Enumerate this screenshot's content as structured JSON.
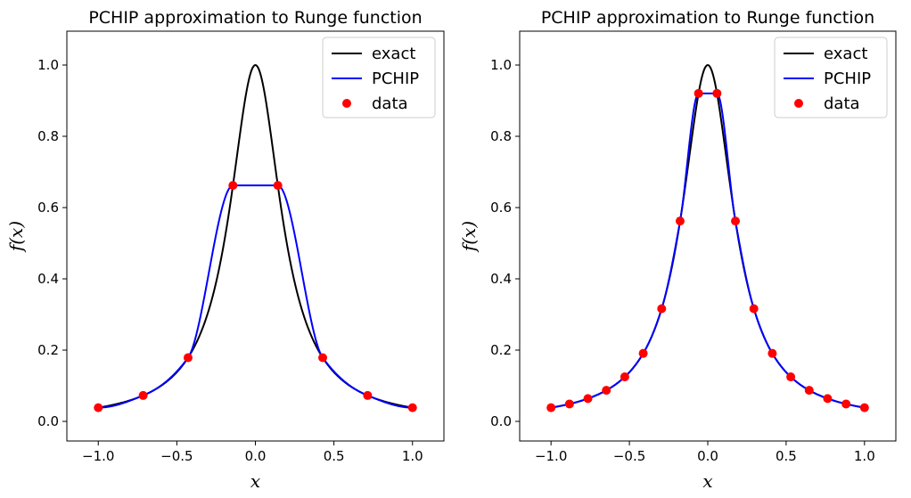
{
  "chart_data": [
    {
      "type": "line",
      "title": "PCHIP approximation to Runge function",
      "xlabel": "x",
      "ylabel": "f(x)",
      "xlim": [
        -1.2,
        1.2
      ],
      "ylim": [
        -0.055,
        1.095
      ],
      "xticks": [
        -1.0,
        -0.5,
        0.0,
        0.5,
        1.0
      ],
      "xtick_labels": [
        "−1.0",
        "−0.5",
        "0.0",
        "0.5",
        "1.0"
      ],
      "yticks": [
        0.0,
        0.2,
        0.4,
        0.6,
        0.8,
        1.0
      ],
      "ytick_labels": [
        "0.0",
        "0.2",
        "0.4",
        "0.6",
        "0.8",
        "1.0"
      ],
      "legend_position": "top-right",
      "series": [
        {
          "name": "exact",
          "kind": "line",
          "color": "#000000",
          "function": "1/(1+25x^2)"
        },
        {
          "name": "PCHIP",
          "kind": "line",
          "color": "#0000ff",
          "interpolates": "data"
        },
        {
          "name": "data",
          "kind": "markers",
          "color": "#ff0000",
          "x": [
            -1.0,
            -0.7143,
            -0.4286,
            -0.1429,
            0.1429,
            0.4286,
            0.7143,
            1.0
          ],
          "y": [
            0.0385,
            0.0727,
            0.1788,
            0.6622,
            0.6622,
            0.1788,
            0.0727,
            0.0385
          ]
        }
      ]
    },
    {
      "type": "line",
      "title": "PCHIP approximation to Runge function",
      "xlabel": "x",
      "ylabel": "f(x)",
      "xlim": [
        -1.2,
        1.2
      ],
      "ylim": [
        -0.055,
        1.095
      ],
      "xticks": [
        -1.0,
        -0.5,
        0.0,
        0.5,
        1.0
      ],
      "xtick_labels": [
        "−1.0",
        "−0.5",
        "0.0",
        "0.5",
        "1.0"
      ],
      "yticks": [
        0.0,
        0.2,
        0.4,
        0.6,
        0.8,
        1.0
      ],
      "ytick_labels": [
        "0.0",
        "0.2",
        "0.4",
        "0.6",
        "0.8",
        "1.0"
      ],
      "legend_position": "top-right",
      "series": [
        {
          "name": "exact",
          "kind": "line",
          "color": "#000000",
          "function": "1/(1+25x^2)"
        },
        {
          "name": "PCHIP",
          "kind": "line",
          "color": "#0000ff",
          "interpolates": "data"
        },
        {
          "name": "data",
          "kind": "markers",
          "color": "#ff0000",
          "x": [
            -1.0,
            -0.8824,
            -0.7647,
            -0.6471,
            -0.5294,
            -0.4118,
            -0.2941,
            -0.1765,
            -0.0588,
            0.0588,
            0.1765,
            0.2941,
            0.4118,
            0.5294,
            0.6471,
            0.7647,
            0.8824,
            1.0
          ],
          "y": [
            0.0385,
            0.0489,
            0.064,
            0.0872,
            0.1249,
            0.1908,
            0.3163,
            0.5622,
            0.9204,
            0.9204,
            0.5622,
            0.3163,
            0.1908,
            0.1249,
            0.0872,
            0.064,
            0.0489,
            0.0385
          ]
        }
      ]
    }
  ]
}
